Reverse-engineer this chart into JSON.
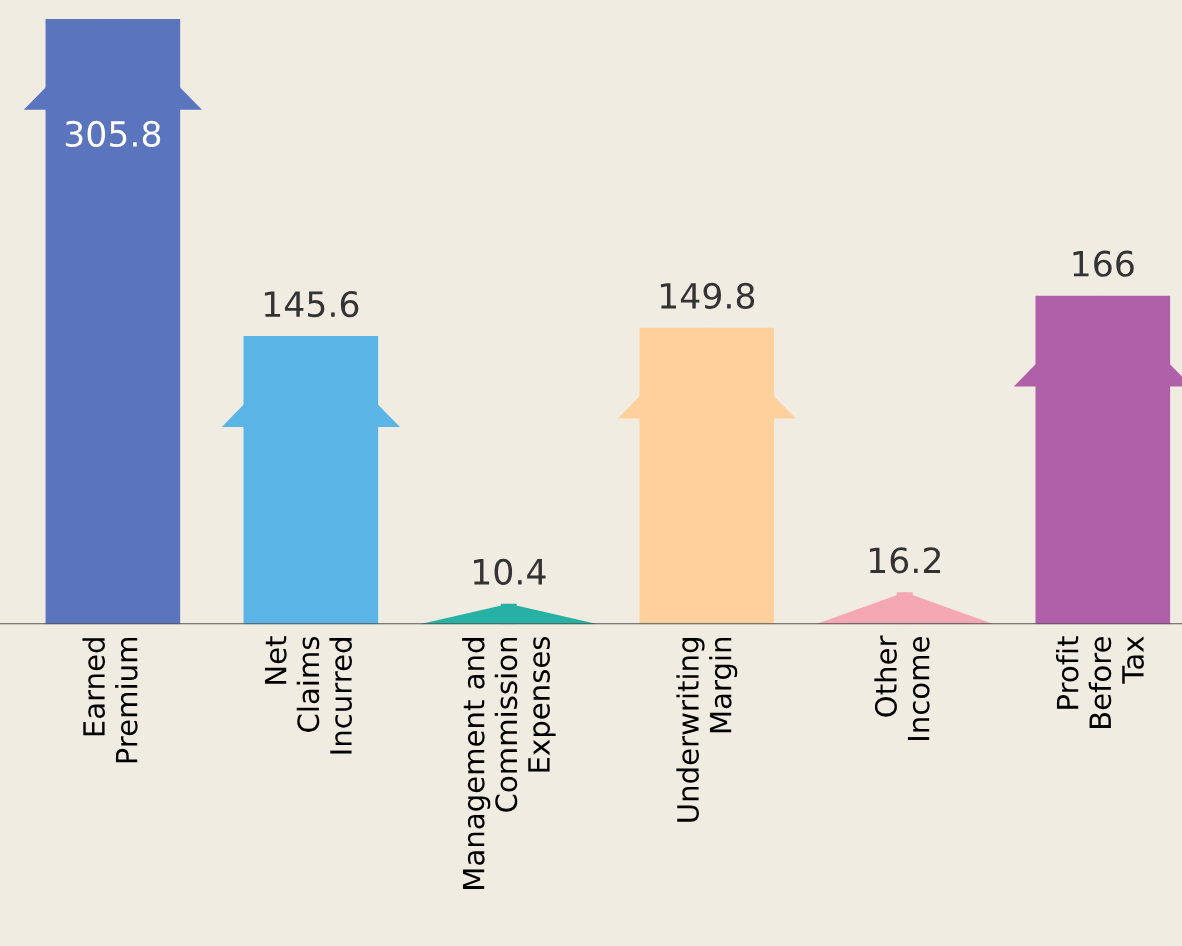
{
  "chart_data": {
    "type": "bar",
    "categories": [
      "Earned\nPremium",
      "Net\nClaims\nIncurred",
      "Management and\nCommission\nExpenses",
      "Underwriting\nMargin",
      "Other\nIncome",
      "Profit\nBefore\nTax"
    ],
    "values": [
      305.8,
      145.6,
      10.4,
      149.8,
      16.2,
      166
    ],
    "colors": [
      "#5b74be",
      "#5ab4e6",
      "#27b0a4",
      "#fdd09c",
      "#f5a8b4",
      "#b060a8"
    ],
    "data_labels": true,
    "grid": false
  }
}
